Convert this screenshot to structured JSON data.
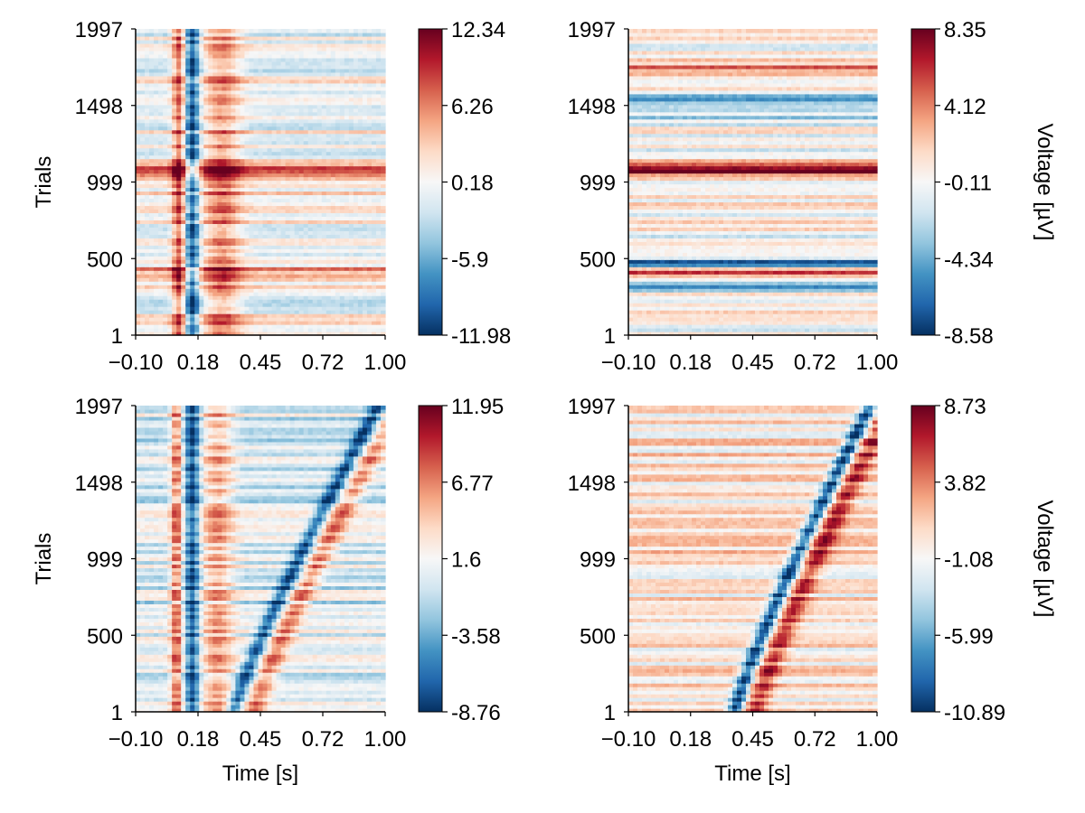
{
  "chart_data": [
    {
      "type": "heatmap",
      "panel": "top-left",
      "xlabel": "",
      "ylabel": "Trials",
      "x_ticks": [
        "−0.10",
        "0.18",
        "0.45",
        "0.72",
        "1.00"
      ],
      "xlim": [
        -0.1,
        1.0
      ],
      "y_ticks": [
        "1",
        "500",
        "999",
        "1498",
        "1997"
      ],
      "ylim": [
        1,
        1997
      ],
      "colorbar": {
        "label": "",
        "ticks": [
          "-11.98",
          "-5.9",
          "0.18",
          "6.26",
          "12.34"
        ],
        "range": [
          -11.98,
          12.34
        ]
      },
      "colormap": "RdBu (reversed): blue negative, red positive",
      "features": [
        {
          "kind": "vertical-band",
          "time": 0.09,
          "width": 0.04,
          "value": 8
        },
        {
          "kind": "vertical-band",
          "time": 0.15,
          "width": 0.045,
          "value": -10
        },
        {
          "kind": "vertical-band",
          "time": 0.28,
          "width": 0.12,
          "value": 6
        },
        {
          "kind": "horizontal-band",
          "trial": 1070,
          "width": 60,
          "value": 9
        },
        {
          "kind": "horizontal-band",
          "trial": 930,
          "width": 30,
          "value": 4
        },
        {
          "kind": "horizontal-band",
          "trial": 420,
          "width": 50,
          "value": 5
        },
        {
          "kind": "horizontal-band",
          "trial": 250,
          "width": 40,
          "value": -4
        }
      ]
    },
    {
      "type": "heatmap",
      "panel": "top-right",
      "xlabel": "",
      "ylabel": "",
      "x_ticks": [
        "−0.10",
        "0.18",
        "0.45",
        "0.72",
        "1.00"
      ],
      "xlim": [
        -0.1,
        1.0
      ],
      "y_ticks": [
        "1",
        "500",
        "999",
        "1498",
        "1997"
      ],
      "ylim": [
        1,
        1997
      ],
      "colorbar": {
        "label": "Voltage [µV]",
        "ticks": [
          "-8.58",
          "-4.34",
          "-0.11",
          "4.12",
          "8.35"
        ],
        "range": [
          -8.58,
          8.35
        ]
      },
      "colormap": "RdBu (reversed): blue negative, red positive",
      "features": [
        {
          "kind": "horizontal-band",
          "trial": 1080,
          "width": 60,
          "value": 8
        },
        {
          "kind": "horizontal-band",
          "trial": 1500,
          "width": 120,
          "value": -4
        },
        {
          "kind": "horizontal-band",
          "trial": 480,
          "width": 40,
          "value": -7
        },
        {
          "kind": "horizontal-band",
          "trial": 320,
          "width": 30,
          "value": -5
        },
        {
          "kind": "horizontal-band",
          "trial": 420,
          "width": 40,
          "value": 5
        },
        {
          "kind": "horizontal-band",
          "trial": 1750,
          "width": 60,
          "value": 4
        }
      ]
    },
    {
      "type": "heatmap",
      "panel": "bottom-left",
      "xlabel": "Time [s]",
      "ylabel": "Trials",
      "x_ticks": [
        "−0.10",
        "0.18",
        "0.45",
        "0.72",
        "1.00"
      ],
      "xlim": [
        -0.1,
        1.0
      ],
      "y_ticks": [
        "1",
        "500",
        "999",
        "1498",
        "1997"
      ],
      "ylim": [
        1,
        1997
      ],
      "colorbar": {
        "label": "",
        "ticks": [
          "-8.76",
          "-3.58",
          "1.6",
          "6.77",
          "11.95"
        ],
        "range": [
          -8.76,
          11.95
        ]
      },
      "colormap": "RdBu (reversed): blue negative, red positive",
      "features": [
        {
          "kind": "vertical-band",
          "time": 0.08,
          "width": 0.035,
          "value": 7
        },
        {
          "kind": "vertical-band",
          "time": 0.15,
          "width": 0.045,
          "value": -8
        },
        {
          "kind": "vertical-band",
          "time": 0.26,
          "width": 0.1,
          "value": 5
        },
        {
          "kind": "sorted-curve",
          "start_time": 0.33,
          "end_time": 0.97,
          "trough_value": -8,
          "peak_value": 6
        }
      ]
    },
    {
      "type": "heatmap",
      "panel": "bottom-right",
      "xlabel": "Time [s]",
      "ylabel": "",
      "x_ticks": [
        "−0.10",
        "0.18",
        "0.45",
        "0.72",
        "1.00"
      ],
      "xlim": [
        -0.1,
        1.0
      ],
      "y_ticks": [
        "1",
        "500",
        "999",
        "1498",
        "1997"
      ],
      "ylim": [
        1,
        1997
      ],
      "colorbar": {
        "label": "Voltage [µV]",
        "ticks": [
          "-10.89",
          "-5.99",
          "-1.08",
          "3.82",
          "8.73"
        ],
        "range": [
          -10.89,
          8.73
        ]
      },
      "colormap": "RdBu (reversed): blue negative, red positive",
      "features": [
        {
          "kind": "sorted-curve",
          "start_time": 0.37,
          "end_time": 0.97,
          "trough_value": -10,
          "peak_value": 6
        }
      ]
    }
  ]
}
